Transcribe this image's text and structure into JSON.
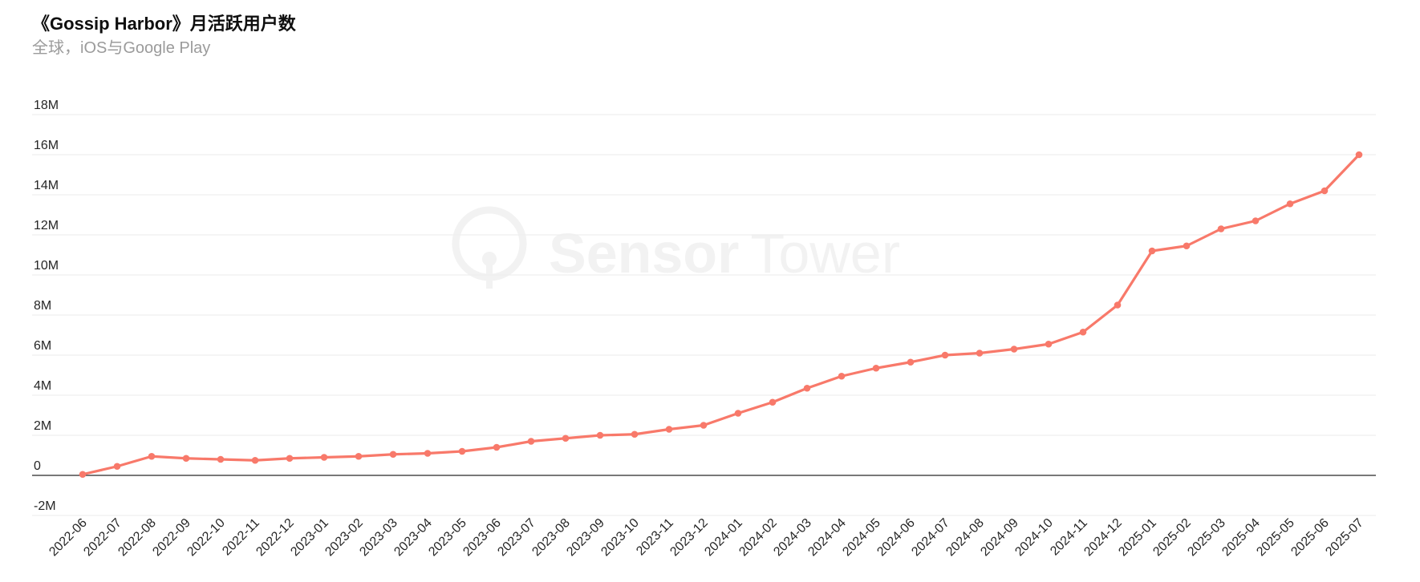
{
  "header": {
    "title": "《Gossip Harbor》月活跃用户数",
    "subtitle": "全球，iOS与Google Play"
  },
  "watermark": {
    "brand_bold": "Sensor",
    "brand_light": "Tower"
  },
  "colors": {
    "background": "#ffffff",
    "grid": "#efefef",
    "axis": "#4c4c4c",
    "tick_text": "#262626",
    "title_text": "#0f0f0f",
    "subtitle_text": "#9b9b9b",
    "watermark": "#f2f2f2",
    "line": "#f8796a",
    "point": "#f8796a"
  },
  "chart_data": {
    "type": "line",
    "title": "《Gossip Harbor》月活跃用户数",
    "subtitle": "全球，iOS与Google Play",
    "unit": "M",
    "unit_description": "millions of monthly active users",
    "legend": "none",
    "grid": true,
    "ylim": [
      -2,
      18
    ],
    "y_ticks": [
      {
        "value": 18,
        "label": "18M"
      },
      {
        "value": 16,
        "label": "16M"
      },
      {
        "value": 14,
        "label": "14M"
      },
      {
        "value": 12,
        "label": "12M"
      },
      {
        "value": 10,
        "label": "10M"
      },
      {
        "value": 8,
        "label": "8M"
      },
      {
        "value": 6,
        "label": "6M"
      },
      {
        "value": 4,
        "label": "4M"
      },
      {
        "value": 2,
        "label": "2M"
      },
      {
        "value": 0,
        "label": "0"
      },
      {
        "value": -2,
        "label": "-2M"
      }
    ],
    "categories": [
      "2022-06",
      "2022-07",
      "2022-08",
      "2022-09",
      "2022-10",
      "2022-11",
      "2022-12",
      "2023-01",
      "2023-02",
      "2023-03",
      "2023-04",
      "2023-05",
      "2023-06",
      "2023-07",
      "2023-08",
      "2023-09",
      "2023-10",
      "2023-11",
      "2023-12",
      "2024-01",
      "2024-02",
      "2024-03",
      "2024-04",
      "2024-05",
      "2024-06",
      "2024-07",
      "2024-08",
      "2024-09",
      "2024-10",
      "2024-11",
      "2024-12",
      "2025-01",
      "2025-02",
      "2025-03",
      "2025-04",
      "2025-05",
      "2025-06",
      "2025-07"
    ],
    "series": [
      {
        "name": "月活跃用户数",
        "values": [
          0.05,
          0.45,
          0.95,
          0.85,
          0.8,
          0.75,
          0.85,
          0.9,
          0.95,
          1.05,
          1.1,
          1.2,
          1.4,
          1.7,
          1.85,
          2.0,
          2.05,
          2.3,
          2.5,
          3.1,
          3.65,
          4.35,
          4.95,
          5.35,
          5.65,
          6.0,
          6.1,
          6.3,
          6.55,
          7.15,
          8.5,
          11.2,
          11.45,
          12.3,
          12.7,
          13.55,
          14.2,
          16.0
        ]
      }
    ]
  }
}
